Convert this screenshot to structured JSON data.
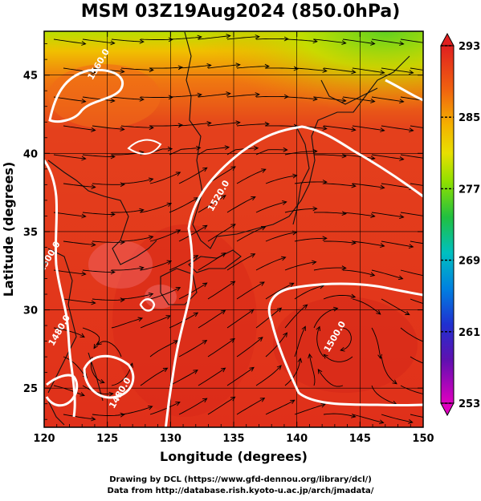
{
  "title": "MSM 03Z19Aug2024 (850.0hPa)",
  "map": {
    "lon_range": [
      120,
      150
    ],
    "lat_range": [
      22.5,
      47.8
    ],
    "x_ticks": [
      120,
      125,
      130,
      135,
      140,
      145,
      150
    ],
    "y_ticks": [
      25,
      30,
      35,
      40,
      45
    ],
    "xlabel": "Longitude (degrees)",
    "ylabel": "Latitude  (degrees)",
    "contour_labels": [
      {
        "text": "1560.0",
        "lon": 124.5,
        "lat": 45.6
      },
      {
        "text": "1520.0",
        "lon": 134.0,
        "lat": 37.2
      },
      {
        "text": "1500.0",
        "lon": 120.6,
        "lat": 33.3
      },
      {
        "text": "1480.0",
        "lon": 121.4,
        "lat": 28.6
      },
      {
        "text": "1480.0",
        "lon": 126.2,
        "lat": 24.6
      },
      {
        "text": "1500.0",
        "lon": 143.2,
        "lat": 28.2
      }
    ]
  },
  "colorbar": {
    "ticks": [
      293,
      285,
      277,
      269,
      261,
      253
    ],
    "min": 253,
    "max": 293
  },
  "credits": {
    "line1": "Drawing by DCL (https://www.gfd-dennou.org/library/dcl/)",
    "line2": "Data from http://database.rish.kyoto-u.ac.jp/arch/jmadata/"
  }
}
